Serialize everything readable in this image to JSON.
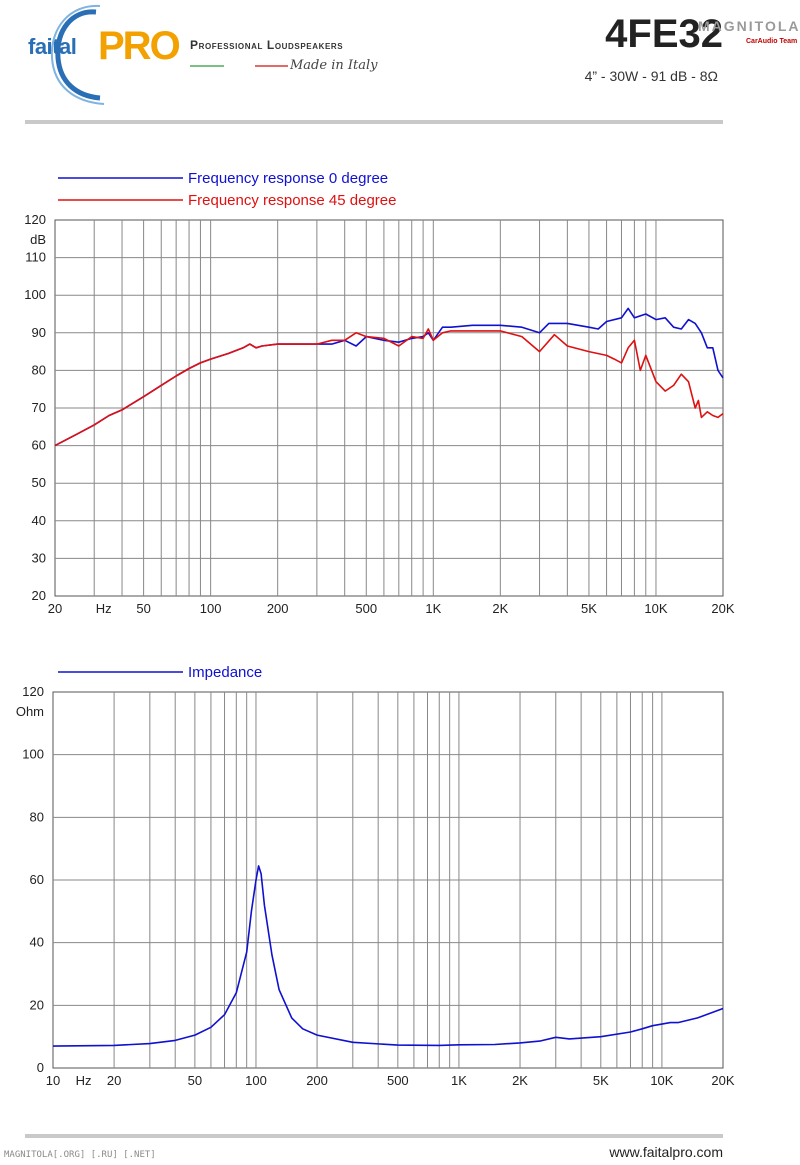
{
  "header": {
    "brand": "faital",
    "brand_pro": "PRO",
    "tagline": "Professional Loudspeakers",
    "made_in": "Made in Italy",
    "model": "4FE32",
    "specs": "4” - 30W - 91 dB - 8Ω",
    "watermark": "MAGNITOLA",
    "watermark_sub": "CarAudio Team"
  },
  "footer": {
    "website": "www.faitalpro.com",
    "watermark": "MAGNITOLA[.ORG] [.RU] [.NET]"
  },
  "colors": {
    "blue": "#1010d0",
    "red": "#e01010",
    "grid": "#888888",
    "gray_bar": "#c9c9c9"
  },
  "chart_data": [
    {
      "type": "line",
      "x_scale": "log",
      "xlim": [
        20,
        20000
      ],
      "ylim": [
        20,
        120
      ],
      "ylabel": "dB",
      "xlabel": "Hz",
      "grid": true,
      "legend_position": "top-left",
      "x_ticks": [
        {
          "value": 20,
          "label": "20"
        },
        {
          "value": 50,
          "label": "50"
        },
        {
          "value": 100,
          "label": "100"
        },
        {
          "value": 200,
          "label": "200"
        },
        {
          "value": 500,
          "label": "500"
        },
        {
          "value": 1000,
          "label": "1K"
        },
        {
          "value": 2000,
          "label": "2K"
        },
        {
          "value": 5000,
          "label": "5K"
        },
        {
          "value": 10000,
          "label": "10K"
        },
        {
          "value": 20000,
          "label": "20K"
        }
      ],
      "y_ticks": [
        20,
        30,
        40,
        50,
        60,
        70,
        80,
        90,
        100,
        110,
        120
      ],
      "series": [
        {
          "name": "Frequency response 0 degree",
          "color": "#1010d0",
          "points": [
            [
              20,
              60
            ],
            [
              25,
              63
            ],
            [
              30,
              65.5
            ],
            [
              35,
              68
            ],
            [
              40,
              69.5
            ],
            [
              50,
              73
            ],
            [
              60,
              76
            ],
            [
              70,
              78.5
            ],
            [
              80,
              80.5
            ],
            [
              90,
              82
            ],
            [
              100,
              83
            ],
            [
              120,
              84.5
            ],
            [
              140,
              86
            ],
            [
              150,
              87
            ],
            [
              160,
              86
            ],
            [
              170,
              86.5
            ],
            [
              200,
              87
            ],
            [
              250,
              87
            ],
            [
              300,
              87
            ],
            [
              350,
              87
            ],
            [
              400,
              88
            ],
            [
              450,
              86.5
            ],
            [
              500,
              89
            ],
            [
              600,
              88
            ],
            [
              700,
              87.5
            ],
            [
              800,
              88.5
            ],
            [
              900,
              89
            ],
            [
              950,
              90
            ],
            [
              1000,
              88
            ],
            [
              1100,
              91.5
            ],
            [
              1200,
              91.5
            ],
            [
              1500,
              92
            ],
            [
              2000,
              92
            ],
            [
              2500,
              91.5
            ],
            [
              3000,
              90
            ],
            [
              3300,
              92.5
            ],
            [
              4000,
              92.5
            ],
            [
              5000,
              91.5
            ],
            [
              5500,
              91
            ],
            [
              6000,
              93
            ],
            [
              7000,
              94
            ],
            [
              7500,
              96.5
            ],
            [
              8000,
              94
            ],
            [
              9000,
              95
            ],
            [
              10000,
              93.5
            ],
            [
              11000,
              94
            ],
            [
              12000,
              91.5
            ],
            [
              13000,
              91
            ],
            [
              14000,
              93.5
            ],
            [
              15000,
              92.5
            ],
            [
              16000,
              90
            ],
            [
              17000,
              86
            ],
            [
              18000,
              86
            ],
            [
              19000,
              80
            ],
            [
              20000,
              78
            ]
          ]
        },
        {
          "name": "Frequency response 45 degree",
          "color": "#e01010",
          "points": [
            [
              20,
              60
            ],
            [
              25,
              63
            ],
            [
              30,
              65.5
            ],
            [
              35,
              68
            ],
            [
              40,
              69.5
            ],
            [
              50,
              73
            ],
            [
              60,
              76
            ],
            [
              70,
              78.5
            ],
            [
              80,
              80.5
            ],
            [
              90,
              82
            ],
            [
              100,
              83
            ],
            [
              120,
              84.5
            ],
            [
              140,
              86
            ],
            [
              150,
              87
            ],
            [
              160,
              86
            ],
            [
              170,
              86.5
            ],
            [
              200,
              87
            ],
            [
              250,
              87
            ],
            [
              300,
              87
            ],
            [
              350,
              88
            ],
            [
              400,
              88
            ],
            [
              450,
              90
            ],
            [
              500,
              89
            ],
            [
              600,
              88.5
            ],
            [
              700,
              86.5
            ],
            [
              800,
              89
            ],
            [
              900,
              88.5
            ],
            [
              950,
              91
            ],
            [
              1000,
              88
            ],
            [
              1100,
              90
            ],
            [
              1200,
              90.5
            ],
            [
              1500,
              90.5
            ],
            [
              2000,
              90.5
            ],
            [
              2500,
              89
            ],
            [
              3000,
              85
            ],
            [
              3500,
              89.5
            ],
            [
              4000,
              86.5
            ],
            [
              5000,
              85
            ],
            [
              6000,
              84
            ],
            [
              6500,
              83
            ],
            [
              7000,
              82
            ],
            [
              7500,
              86
            ],
            [
              8000,
              88
            ],
            [
              8500,
              80
            ],
            [
              9000,
              84
            ],
            [
              10000,
              77
            ],
            [
              11000,
              74.5
            ],
            [
              12000,
              76
            ],
            [
              13000,
              79
            ],
            [
              14000,
              77
            ],
            [
              15000,
              70
            ],
            [
              15500,
              72
            ],
            [
              16000,
              67.5
            ],
            [
              17000,
              69
            ],
            [
              18000,
              68
            ],
            [
              19000,
              67.5
            ],
            [
              20000,
              68.5
            ]
          ]
        }
      ]
    },
    {
      "type": "line",
      "x_scale": "log",
      "xlim": [
        10,
        20000
      ],
      "ylim": [
        0,
        120
      ],
      "ylabel": "Ohm",
      "xlabel": "Hz",
      "grid": true,
      "legend_position": "top-left",
      "x_ticks": [
        {
          "value": 10,
          "label": "10"
        },
        {
          "value": 20,
          "label": "20"
        },
        {
          "value": 50,
          "label": "50"
        },
        {
          "value": 100,
          "label": "100"
        },
        {
          "value": 200,
          "label": "200"
        },
        {
          "value": 500,
          "label": "500"
        },
        {
          "value": 1000,
          "label": "1K"
        },
        {
          "value": 2000,
          "label": "2K"
        },
        {
          "value": 5000,
          "label": "5K"
        },
        {
          "value": 10000,
          "label": "10K"
        },
        {
          "value": 20000,
          "label": "20K"
        }
      ],
      "y_ticks": [
        0,
        20,
        40,
        60,
        80,
        100,
        120
      ],
      "series": [
        {
          "name": "Impedance",
          "color": "#1010d0",
          "points": [
            [
              10,
              7
            ],
            [
              20,
              7.2
            ],
            [
              30,
              7.8
            ],
            [
              40,
              8.8
            ],
            [
              50,
              10.5
            ],
            [
              60,
              13
            ],
            [
              70,
              17
            ],
            [
              80,
              24
            ],
            [
              90,
              37
            ],
            [
              95,
              50
            ],
            [
              100,
              60
            ],
            [
              103,
              64.5
            ],
            [
              106,
              62
            ],
            [
              110,
              52
            ],
            [
              120,
              36
            ],
            [
              130,
              25
            ],
            [
              150,
              16
            ],
            [
              170,
              12.5
            ],
            [
              200,
              10.5
            ],
            [
              300,
              8.2
            ],
            [
              500,
              7.3
            ],
            [
              800,
              7.2
            ],
            [
              1000,
              7.4
            ],
            [
              1500,
              7.5
            ],
            [
              2000,
              8
            ],
            [
              2500,
              8.6
            ],
            [
              3000,
              9.8
            ],
            [
              3500,
              9.3
            ],
            [
              5000,
              10
            ],
            [
              7000,
              11.5
            ],
            [
              8000,
              12.5
            ],
            [
              9000,
              13.5
            ],
            [
              10000,
              14
            ],
            [
              11000,
              14.5
            ],
            [
              12000,
              14.5
            ],
            [
              15000,
              16
            ],
            [
              20000,
              19
            ]
          ]
        }
      ]
    }
  ]
}
